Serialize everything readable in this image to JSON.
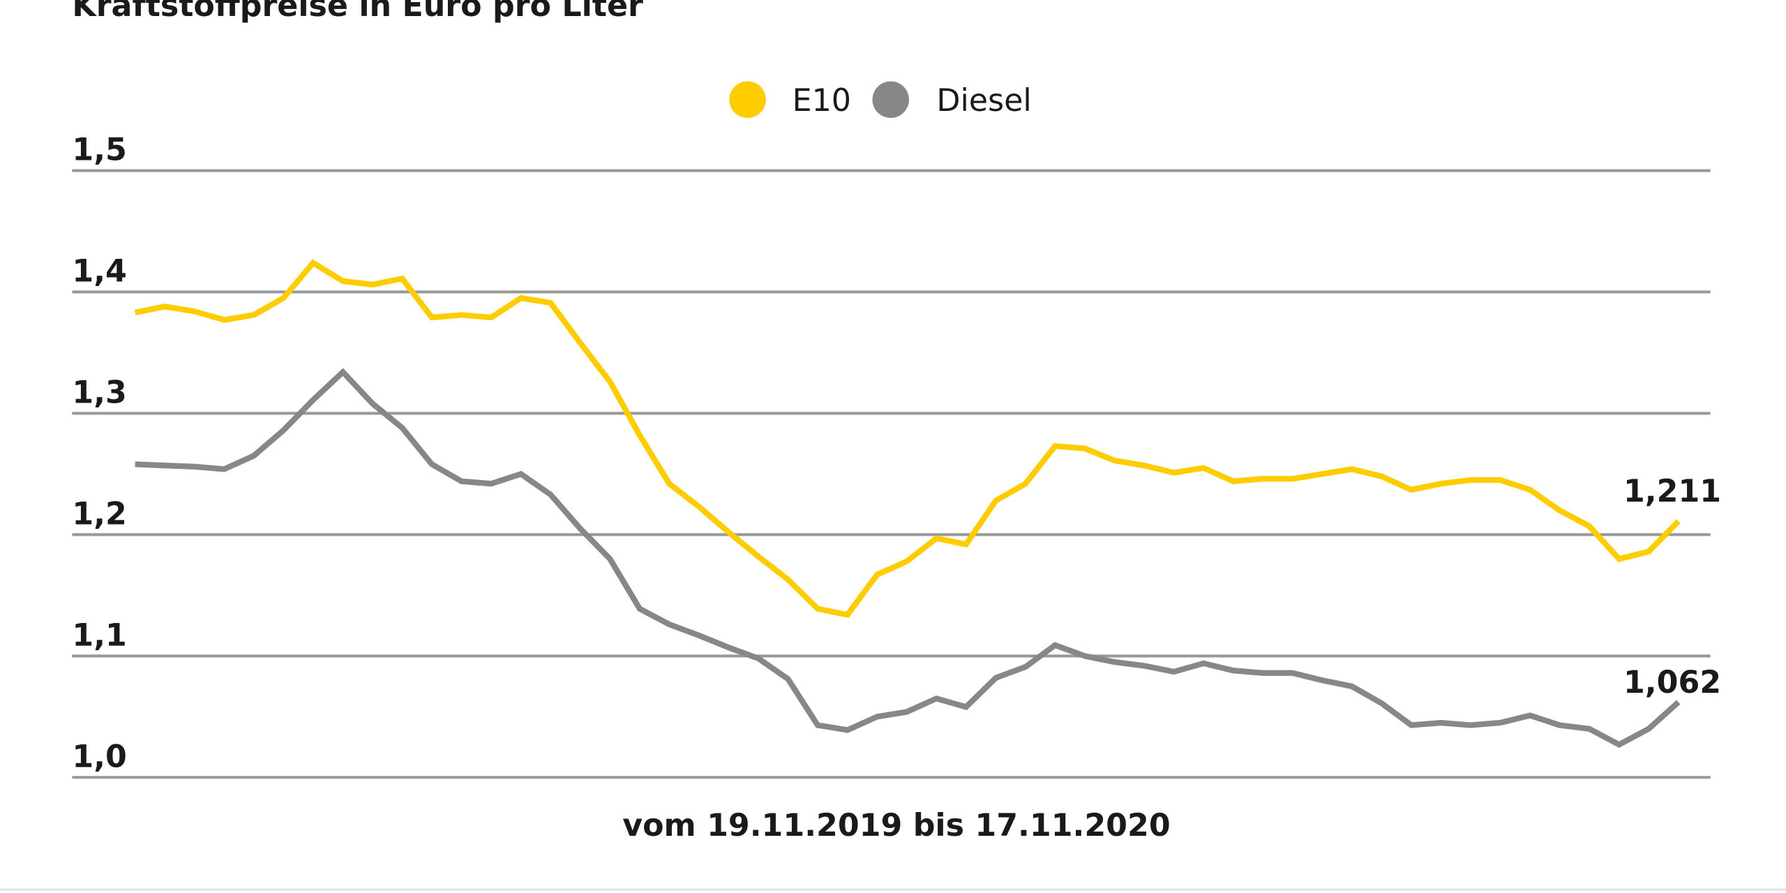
{
  "chart_data": {
    "type": "line",
    "title": "Kraftstoffpreise in Euro pro Liter",
    "xlabel": "vom 19.11.2019 bis 17.11.2020",
    "ylabel": "",
    "ylim": [
      1.0,
      1.5
    ],
    "yticks": [
      1.0,
      1.1,
      1.2,
      1.3,
      1.4,
      1.5
    ],
    "ytick_labels": [
      "1,0",
      "1,1",
      "1,2",
      "1,3",
      "1,4",
      "1,5"
    ],
    "grid": true,
    "legend_placement": "top-center",
    "x_start": "19.11.2019",
    "x_end": "17.11.2020",
    "series": [
      {
        "name": "E10",
        "color": "#FFCC00",
        "end_label": "1,211",
        "values": [
          1.383,
          1.388,
          1.384,
          1.377,
          1.381,
          1.395,
          1.424,
          1.409,
          1.406,
          1.411,
          1.379,
          1.381,
          1.379,
          1.395,
          1.391,
          1.358,
          1.326,
          1.282,
          1.242,
          1.223,
          1.202,
          1.182,
          1.163,
          1.139,
          1.134,
          1.167,
          1.178,
          1.197,
          1.192,
          1.228,
          1.242,
          1.273,
          1.271,
          1.261,
          1.257,
          1.251,
          1.255,
          1.244,
          1.246,
          1.246,
          1.25,
          1.254,
          1.248,
          1.237,
          1.242,
          1.245,
          1.245,
          1.237,
          1.22,
          1.207,
          1.18,
          1.186,
          1.211
        ]
      },
      {
        "name": "Diesel",
        "color": "#878787",
        "end_label": "1,062",
        "values": [
          1.258,
          1.257,
          1.256,
          1.254,
          1.265,
          1.286,
          1.311,
          1.334,
          1.308,
          1.288,
          1.258,
          1.244,
          1.242,
          1.25,
          1.233,
          1.205,
          1.18,
          1.139,
          1.126,
          1.117,
          1.107,
          1.098,
          1.081,
          1.043,
          1.039,
          1.05,
          1.054,
          1.065,
          1.058,
          1.082,
          1.091,
          1.109,
          1.1,
          1.095,
          1.092,
          1.087,
          1.094,
          1.088,
          1.086,
          1.086,
          1.08,
          1.075,
          1.061,
          1.043,
          1.045,
          1.043,
          1.045,
          1.051,
          1.043,
          1.04,
          1.027,
          1.04,
          1.062
        ]
      }
    ],
    "gridline_color": "#999999"
  }
}
